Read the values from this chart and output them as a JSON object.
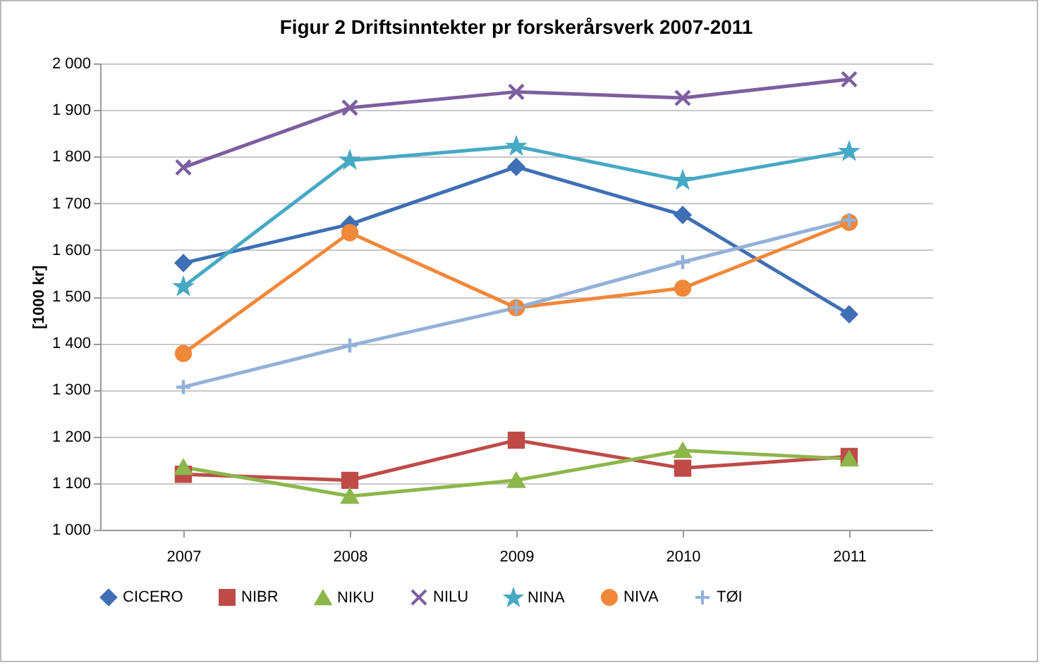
{
  "chart_data": {
    "type": "line",
    "title": "Figur 2 Driftsinntekter pr forskerårsverk 2007-2011",
    "ylabel": "[1000 kr]",
    "categories": [
      "2007",
      "2008",
      "2009",
      "2010",
      "2011"
    ],
    "ylim": [
      1000,
      2000
    ],
    "yticks": [
      {
        "value": 1000,
        "label": "1 000"
      },
      {
        "value": 1100,
        "label": "1 100"
      },
      {
        "value": 1200,
        "label": "1 200"
      },
      {
        "value": 1300,
        "label": "1 300"
      },
      {
        "value": 1400,
        "label": "1 400"
      },
      {
        "value": 1500,
        "label": "1 500"
      },
      {
        "value": 1600,
        "label": "1 600"
      },
      {
        "value": 1700,
        "label": "1 700"
      },
      {
        "value": 1800,
        "label": "1 800"
      },
      {
        "value": 1900,
        "label": "1 900"
      },
      {
        "value": 2000,
        "label": "2 000"
      }
    ],
    "grid": "y",
    "legend": "bottom",
    "series": [
      {
        "name": "CICERO",
        "color": "#3f6fb5",
        "marker": "diamond",
        "values": [
          1572,
          1655,
          1778,
          1675,
          1462
        ]
      },
      {
        "name": "NIBR",
        "color": "#be4b48",
        "marker": "square",
        "values": [
          1119,
          1106,
          1192,
          1132,
          1157
        ]
      },
      {
        "name": "NIKU",
        "color": "#8db64b",
        "marker": "triangle",
        "values": [
          1134,
          1072,
          1106,
          1170,
          1152
        ]
      },
      {
        "name": "NILU",
        "color": "#7d5fa0",
        "marker": "cross",
        "values": [
          1777,
          1905,
          1939,
          1926,
          1966
        ]
      },
      {
        "name": "NINA",
        "color": "#46a9c4",
        "marker": "star",
        "values": [
          1521,
          1792,
          1822,
          1749,
          1811
        ]
      },
      {
        "name": "NIVA",
        "color": "#f0883a",
        "marker": "circle",
        "values": [
          1378,
          1637,
          1476,
          1518,
          1659
        ]
      },
      {
        "name": "TØI",
        "color": "#93b1d8",
        "marker": "plus",
        "values": [
          1306,
          1395,
          1476,
          1574,
          1664
        ]
      }
    ]
  }
}
